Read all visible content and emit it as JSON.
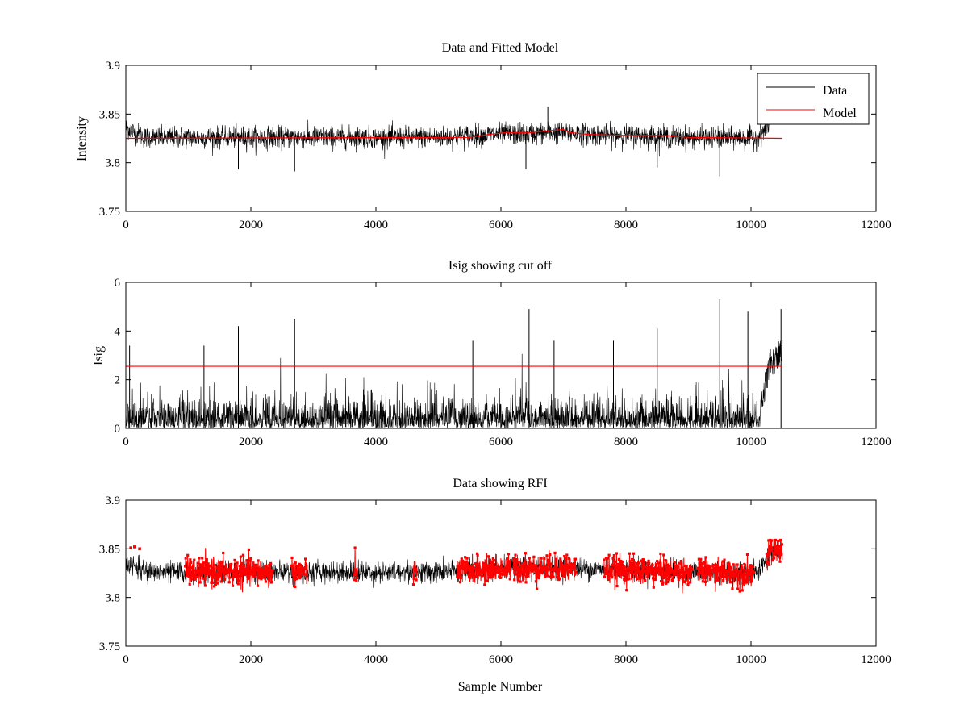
{
  "colors": {
    "background": "#ffffff",
    "data": "#000000",
    "model": "#ff0000",
    "rfi": "#ff0000",
    "axes": "#000000"
  },
  "chart_data": [
    {
      "id": "p1",
      "type": "line",
      "title": "Data and Fitted Model",
      "xlabel": "",
      "ylabel": "Intensity",
      "xlim": [
        0,
        12000
      ],
      "ylim": [
        3.75,
        3.9
      ],
      "xticks": [
        0,
        2000,
        4000,
        6000,
        8000,
        10000,
        12000
      ],
      "yticks": [
        3.75,
        3.8,
        3.85,
        3.9
      ],
      "xtick_labels": [
        "0",
        "2000",
        "4000",
        "6000",
        "8000",
        "10000",
        "12000"
      ],
      "ytick_labels": [
        "3.75",
        "3.8",
        "3.85",
        "3.9"
      ],
      "legend": {
        "placement": "top-right",
        "entries": [
          {
            "label": "Data",
            "color": "#000000"
          },
          {
            "label": "Model",
            "color": "#ff0000"
          }
        ]
      },
      "series": [
        {
          "name": "Data",
          "color": "#000000",
          "style": "noisy-line",
          "x_range": [
            0,
            10300
          ],
          "baseline": [
            [
              0,
              3.836
            ],
            [
              300,
              3.826
            ],
            [
              1500,
              3.826
            ],
            [
              5000,
              3.826
            ],
            [
              5800,
              3.829
            ],
            [
              6500,
              3.83
            ],
            [
              7000,
              3.831
            ],
            [
              7500,
              3.829
            ],
            [
              9000,
              3.826
            ],
            [
              10100,
              3.825
            ],
            [
              10300,
              3.84
            ]
          ],
          "noise_sd": 0.0055,
          "notable_extremes": [
            [
              6750,
              3.857
            ],
            [
              6400,
              3.793
            ],
            [
              9500,
              3.786
            ],
            [
              2700,
              3.791
            ],
            [
              8500,
              3.795
            ],
            [
              1800,
              3.793
            ]
          ]
        },
        {
          "name": "Model",
          "color": "#ff0000",
          "style": "line",
          "points": [
            [
              0,
              3.825
            ],
            [
              5500,
              3.826
            ],
            [
              5800,
              3.829
            ],
            [
              6100,
              3.831
            ],
            [
              6500,
              3.831
            ],
            [
              6800,
              3.833
            ],
            [
              7000,
              3.834
            ],
            [
              7100,
              3.831
            ],
            [
              7400,
              3.829
            ],
            [
              8000,
              3.828
            ],
            [
              8600,
              3.828
            ],
            [
              9000,
              3.826
            ],
            [
              10500,
              3.825
            ]
          ]
        }
      ]
    },
    {
      "id": "p2",
      "type": "line",
      "title": "Isig showing cut off",
      "xlabel": "",
      "ylabel": "Isig",
      "xlim": [
        0,
        12000
      ],
      "ylim": [
        0,
        6
      ],
      "xticks": [
        0,
        2000,
        4000,
        6000,
        8000,
        10000,
        12000
      ],
      "yticks": [
        0,
        2,
        4,
        6
      ],
      "xtick_labels": [
        "0",
        "2000",
        "4000",
        "6000",
        "8000",
        "10000",
        "12000"
      ],
      "ytick_labels": [
        "0",
        "2",
        "4",
        "6"
      ],
      "series": [
        {
          "name": "Isig",
          "color": "#000000",
          "style": "noisy-positive",
          "x_range": [
            0,
            10500
          ],
          "typical_max": 1.5,
          "late_rise": [
            [
              10150,
              0.8
            ],
            [
              10300,
              2.5
            ],
            [
              10500,
              3.0
            ]
          ],
          "notable_peaks": [
            [
              60,
              3.4
            ],
            [
              1250,
              3.4
            ],
            [
              1800,
              4.2
            ],
            [
              2700,
              4.5
            ],
            [
              5550,
              3.6
            ],
            [
              6450,
              4.9
            ],
            [
              6850,
              3.6
            ],
            [
              7800,
              3.6
            ],
            [
              8500,
              4.1
            ],
            [
              9500,
              5.3
            ],
            [
              9950,
              4.8
            ],
            [
              10480,
              4.9
            ]
          ]
        },
        {
          "name": "Cut off",
          "color": "#ff0000",
          "style": "line",
          "points": [
            [
              0,
              2.55
            ],
            [
              10500,
              2.55
            ]
          ]
        }
      ]
    },
    {
      "id": "p3",
      "type": "line",
      "title": "Data showing RFI",
      "xlabel": "Sample Number",
      "ylabel": "",
      "xlim": [
        0,
        12000
      ],
      "ylim": [
        3.75,
        3.9
      ],
      "xticks": [
        0,
        2000,
        4000,
        6000,
        8000,
        10000,
        12000
      ],
      "yticks": [
        3.75,
        3.8,
        3.85,
        3.9
      ],
      "xtick_labels": [
        "0",
        "2000",
        "4000",
        "6000",
        "8000",
        "10000",
        "12000"
      ],
      "ytick_labels": [
        "3.75",
        "3.8",
        "3.85",
        "3.9"
      ],
      "series": [
        {
          "name": "Data",
          "color": "#000000",
          "style": "noisy-line",
          "x_range": [
            0,
            10500
          ],
          "baseline": [
            [
              0,
              3.836
            ],
            [
              300,
              3.826
            ],
            [
              1500,
              3.826
            ],
            [
              5000,
              3.826
            ],
            [
              5800,
              3.829
            ],
            [
              6500,
              3.83
            ],
            [
              7000,
              3.831
            ],
            [
              7500,
              3.829
            ],
            [
              9000,
              3.826
            ],
            [
              10100,
              3.825
            ],
            [
              10300,
              3.846
            ],
            [
              10500,
              3.85
            ]
          ],
          "noise_sd": 0.0055
        },
        {
          "name": "RFI",
          "color": "#ff0000",
          "style": "markers",
          "segments": [
            [
              950,
              2350
            ],
            [
              2650,
              2900
            ],
            [
              3650,
              3700
            ],
            [
              4600,
              4650
            ],
            [
              5300,
              6150
            ],
            [
              6200,
              7200
            ],
            [
              7650,
              9050
            ],
            [
              9150,
              10050
            ],
            [
              10250,
              10500
            ]
          ],
          "sparse_points": [
            [
              80,
              3.851
            ],
            [
              140,
              3.852
            ],
            [
              220,
              3.85
            ]
          ]
        }
      ]
    }
  ]
}
